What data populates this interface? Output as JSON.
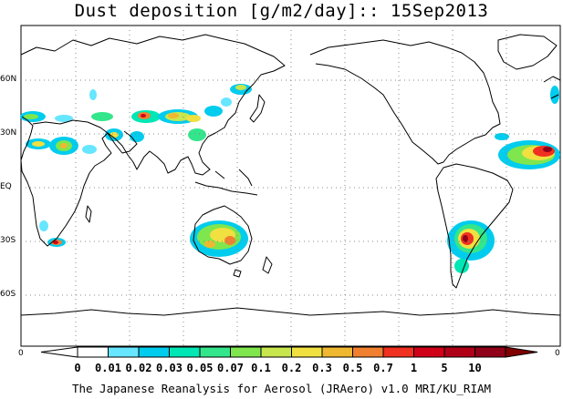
{
  "title": "Dust deposition [g/m2/day]:: 15Sep2013",
  "footer": "The Japanese Reanalysis for Aerosol (JRAero) v1.0 MRI/KU_RIAM",
  "map": {
    "projection": "cylindrical",
    "lat_labels": [
      "60N",
      "30N",
      "EQ",
      "30S",
      "60S"
    ],
    "lon_axis_labels": [
      "0",
      "0"
    ],
    "gridlines": "dotted",
    "land_outline_color": "#000000",
    "field": "Dust deposition",
    "units": "g/m2/day",
    "date": "15Sep2013"
  },
  "colorbar": {
    "labels": [
      "0",
      "0.01",
      "0.02",
      "0.03",
      "0.05",
      "0.07",
      "0.1",
      "0.2",
      "0.3",
      "0.5",
      "0.7",
      "1",
      "5",
      "10"
    ],
    "colors": [
      "#ffffff",
      "#ffffff",
      "#66e6ff",
      "#00ccee",
      "#00e6b4",
      "#33e68c",
      "#80e64d",
      "#c8e64d",
      "#f0e040",
      "#f0b830",
      "#f08030",
      "#f03020",
      "#d00018",
      "#b00018",
      "#900018",
      "#800000"
    ],
    "triangle_colors": {
      "left": "#ffffff",
      "right": "#800000"
    }
  },
  "dust_regions": [
    {
      "area": "Mediterranean / W. Europe",
      "level": "0.02-0.2"
    },
    {
      "area": "Sahara / Arabian Peninsula",
      "level": "0.02-0.5"
    },
    {
      "area": "Middle East / Caspian",
      "level": "0.02-0.7"
    },
    {
      "area": "Central Asia / Taklimakan / Gobi",
      "level": "0.02-1"
    },
    {
      "area": "East Asia / NE China",
      "level": "0.02-0.3"
    },
    {
      "area": "Southern Africa",
      "level": "0.02-1"
    },
    {
      "area": "Australia",
      "level": "0.02-0.7"
    },
    {
      "area": "South America (Patagonia / Gran Chaco)",
      "level": "0.02-5"
    },
    {
      "area": "Tropical N. Atlantic (Saharan plume)",
      "level": "0.02-5"
    }
  ]
}
